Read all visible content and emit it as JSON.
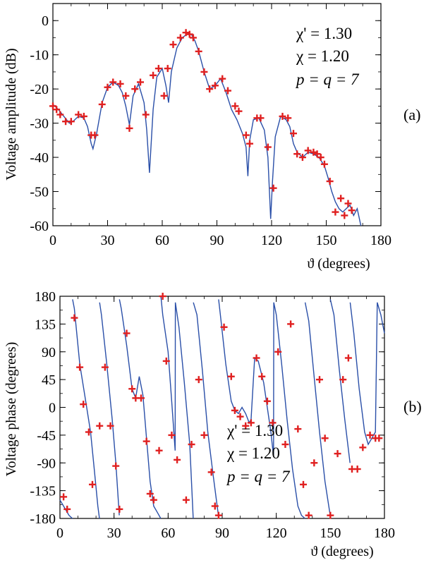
{
  "chart_data": [
    {
      "type": "line",
      "panel_label": "(a)",
      "xlabel": "ϑ (degrees)",
      "ylabel": "Voltage amplitude (dB)",
      "xlim": [
        0,
        180
      ],
      "ylim": [
        -60,
        5
      ],
      "xticks": [
        0,
        30,
        60,
        90,
        120,
        150,
        180
      ],
      "yticks": [
        0,
        -10,
        -20,
        -30,
        -40,
        -50,
        -60
      ],
      "annotations": [
        "χ' = 1.30",
        "χ = 1.20",
        "p = q = 7"
      ],
      "line_color": "#2a4fa8",
      "marker_color": "#e02020",
      "curve": {
        "x": [
          0,
          3,
          6,
          9,
          11,
          14,
          17,
          19,
          21,
          22,
          24,
          27,
          30,
          33,
          36,
          38,
          40,
          42,
          44,
          47,
          50,
          51.5,
          53,
          55,
          57,
          60,
          62,
          63.5,
          65,
          68,
          71,
          74,
          76,
          78,
          80,
          83,
          86,
          89,
          92,
          95,
          98,
          101,
          104,
          106,
          107,
          108,
          110,
          113,
          116,
          118,
          119.5,
          120.5,
          122,
          125,
          128,
          130,
          132,
          134,
          137,
          140,
          143,
          146,
          149,
          151,
          153,
          155,
          157,
          159,
          161,
          163,
          165,
          167,
          169
        ],
        "y": [
          -24.5,
          -26,
          -28,
          -30,
          -29.5,
          -28,
          -28.5,
          -31,
          -36,
          -37.5,
          -33,
          -24,
          -19.5,
          -18,
          -19,
          -21,
          -25,
          -30.5,
          -22,
          -18.5,
          -24,
          -32,
          -44.5,
          -26,
          -16.5,
          -14,
          -19,
          -24,
          -15,
          -8,
          -5,
          -3.8,
          -4,
          -6,
          -9,
          -15,
          -20,
          -19,
          -17,
          -21,
          -26,
          -29,
          -33,
          -37,
          -45.5,
          -35,
          -29,
          -28.5,
          -32,
          -40,
          -58,
          -47,
          -34,
          -28,
          -29,
          -31,
          -36,
          -38.5,
          -40,
          -38.5,
          -39,
          -40,
          -42.5,
          -46,
          -50,
          -53,
          -55,
          -56,
          -55,
          -54,
          -57,
          -55,
          -60
        ],
        "note": "approximate trace read from the plot"
      },
      "markers": {
        "x": [
          0,
          2,
          4,
          7,
          10,
          14,
          17,
          21,
          23,
          27,
          30,
          33,
          37,
          40,
          42,
          45,
          48,
          51,
          55,
          58,
          61,
          63,
          66,
          70,
          73,
          75,
          77,
          80,
          83,
          86,
          89,
          93,
          96,
          100,
          102,
          106,
          108,
          112,
          114,
          118,
          121,
          126,
          129,
          132,
          134,
          137,
          140,
          143,
          145,
          147,
          149,
          152,
          155,
          158,
          160,
          162,
          164
        ],
        "y": [
          -25,
          -26,
          -27.5,
          -29.5,
          -29.5,
          -27.5,
          -28,
          -33.5,
          -33.5,
          -24.5,
          -19.5,
          -18,
          -18.5,
          -22,
          -31.5,
          -20,
          -18,
          -27.5,
          -16,
          -14,
          -22,
          -14,
          -7,
          -5,
          -3.5,
          -4,
          -5,
          -9,
          -15,
          -20,
          -19,
          -17,
          -20.5,
          -25,
          -26.5,
          -33.5,
          -36,
          -28.5,
          -28.5,
          -37,
          -49,
          -28,
          -28.5,
          -33,
          -39,
          -40,
          -38,
          -38.5,
          -39,
          -40,
          -42,
          -47,
          -56,
          -52,
          -57,
          -53.5,
          -55.5
        ]
      }
    },
    {
      "type": "line",
      "panel_label": "(b)",
      "xlabel": "ϑ (degrees)",
      "ylabel": "Voltage phase (degrees)",
      "xlim": [
        0,
        180
      ],
      "ylim": [
        -180,
        180
      ],
      "xticks": [
        0,
        30,
        60,
        90,
        120,
        150,
        180
      ],
      "yticks": [
        180,
        135,
        90,
        45,
        0,
        -45,
        -90,
        -135,
        -180
      ],
      "annotations": [
        "χ' = 1.30",
        "χ = 1.20",
        "p = q = 7"
      ],
      "line_color": "#2a4fa8",
      "marker_color": "#e02020",
      "curve": {
        "x": [
          0,
          3,
          5,
          6.9,
          7,
          8,
          11,
          14,
          17,
          19,
          21,
          21.9,
          22,
          23,
          26,
          29,
          31,
          32.9,
          33,
          34,
          37,
          40,
          42,
          44,
          46,
          48,
          50,
          52,
          54,
          55.9,
          56,
          57,
          60,
          62,
          63.9,
          64,
          66,
          69,
          72,
          73.9,
          74,
          76,
          79,
          82,
          85,
          87.9,
          88,
          89,
          92,
          95,
          97,
          99,
          101,
          103,
          105,
          106,
          108,
          110,
          113,
          115,
          117,
          118.5,
          118.6,
          120,
          123,
          126,
          129,
          132,
          134,
          135.9,
          136,
          138,
          141,
          144,
          147,
          149.9,
          150,
          152,
          155,
          158,
          160.9,
          161,
          163,
          166,
          169,
          171,
          173,
          175,
          176,
          178,
          180
        ],
        "y": [
          -150,
          -165,
          -175,
          -180,
          175,
          160,
          70,
          15,
          -40,
          -100,
          -160,
          -180,
          170,
          150,
          70,
          -20,
          -90,
          -175,
          175,
          160,
          100,
          30,
          15,
          50,
          20,
          -50,
          -120,
          -160,
          -170,
          -180,
          180,
          150,
          90,
          10,
          -70,
          170,
          130,
          40,
          -60,
          -180,
          170,
          150,
          60,
          -40,
          -110,
          -175,
          175,
          150,
          70,
          10,
          -5,
          -10,
          0,
          -10,
          -25,
          -20,
          80,
          75,
          40,
          0,
          -40,
          -80,
          170,
          150,
          70,
          -20,
          -100,
          -160,
          -175,
          -180,
          170,
          140,
          50,
          -40,
          -120,
          -175,
          175,
          150,
          60,
          -20,
          -90,
          170,
          120,
          30,
          -40,
          -60,
          -50,
          -40,
          170,
          150,
          120
        ]
      },
      "markers": {
        "x": [
          2,
          4,
          8,
          11,
          13,
          16,
          18,
          22,
          25,
          28,
          31,
          33,
          37,
          40,
          42,
          45,
          48,
          50,
          52,
          55,
          57,
          59,
          62,
          65,
          70,
          73,
          77,
          80,
          84,
          86,
          88,
          91,
          95,
          97,
          100,
          103,
          106,
          109,
          112,
          115,
          118,
          121,
          125,
          128,
          132,
          135,
          138,
          141,
          144,
          147,
          150,
          154,
          157,
          160,
          162,
          165,
          168,
          172,
          175,
          177
        ],
        "y": [
          -145,
          -165,
          145,
          65,
          5,
          -40,
          -125,
          -30,
          65,
          -30,
          -95,
          -165,
          120,
          30,
          15,
          15,
          -55,
          -140,
          -150,
          -70,
          180,
          75,
          -45,
          -85,
          -150,
          -60,
          45,
          -45,
          -105,
          -160,
          -175,
          130,
          50,
          -5,
          -15,
          -30,
          -25,
          80,
          50,
          10,
          -25,
          90,
          -60,
          135,
          -35,
          -125,
          -175,
          -90,
          45,
          -50,
          -175,
          -75,
          45,
          80,
          -100,
          -100,
          -65,
          -45,
          -50,
          -50
        ]
      }
    }
  ]
}
